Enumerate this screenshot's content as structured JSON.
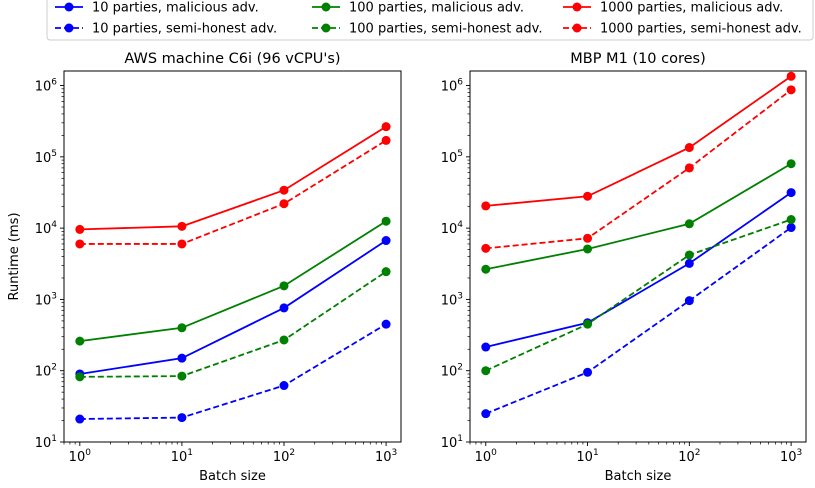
{
  "legend": {
    "placement": "top-center",
    "entries": [
      {
        "label": "10 parties, malicious adv.",
        "color": "#0000ff",
        "dash": "solid"
      },
      {
        "label": "100 parties, malicious adv.",
        "color": "#008000",
        "dash": "solid"
      },
      {
        "label": "1000 parties, malicious adv.",
        "color": "#ff0000",
        "dash": "solid"
      },
      {
        "label": "10 parties, semi-honest adv.",
        "color": "#0000ff",
        "dash": "dashed"
      },
      {
        "label": "100 parties, semi-honest adv.",
        "color": "#008000",
        "dash": "dashed"
      },
      {
        "label": "1000 parties, semi-honest adv.",
        "color": "#ff0000",
        "dash": "dashed"
      }
    ]
  },
  "chart_data": [
    {
      "type": "line",
      "title": "AWS machine C6i (96 vCPU's)",
      "xlabel": "Batch size",
      "ylabel": "Runtime (ms)",
      "xscale": "log",
      "yscale": "log",
      "x": [
        1,
        10,
        100,
        1000
      ],
      "xticks": [
        {
          "value": 1,
          "base": "10",
          "exp": "0"
        },
        {
          "value": 10,
          "base": "10",
          "exp": "1"
        },
        {
          "value": 100,
          "base": "10",
          "exp": "2"
        },
        {
          "value": 1000,
          "base": "10",
          "exp": "3"
        }
      ],
      "yticks": [
        {
          "value": 10,
          "base": "10",
          "exp": "1"
        },
        {
          "value": 100,
          "base": "10",
          "exp": "2"
        },
        {
          "value": 1000,
          "base": "10",
          "exp": "3"
        },
        {
          "value": 10000,
          "base": "10",
          "exp": "4"
        },
        {
          "value": 100000,
          "base": "10",
          "exp": "5"
        },
        {
          "value": 1000000,
          "base": "10",
          "exp": "6"
        }
      ],
      "xlim": [
        0.7,
        1400
      ],
      "ylim": [
        10,
        1600000
      ],
      "grid": false,
      "series": [
        {
          "name": "10 parties, malicious adv.",
          "color": "#0000ff",
          "dash": "solid",
          "values": [
            90,
            150,
            760,
            6700
          ]
        },
        {
          "name": "10 parties, semi-honest adv.",
          "color": "#0000ff",
          "dash": "dashed",
          "values": [
            21,
            22,
            62,
            450
          ]
        },
        {
          "name": "100 parties, malicious adv.",
          "color": "#008000",
          "dash": "solid",
          "values": [
            260,
            400,
            1550,
            12500
          ]
        },
        {
          "name": "100 parties, semi-honest adv.",
          "color": "#008000",
          "dash": "dashed",
          "values": [
            82,
            84,
            270,
            2450
          ]
        },
        {
          "name": "1000 parties, malicious adv.",
          "color": "#ff0000",
          "dash": "solid",
          "values": [
            9600,
            10600,
            34000,
            265000
          ]
        },
        {
          "name": "1000 parties, semi-honest adv.",
          "color": "#ff0000",
          "dash": "dashed",
          "values": [
            6000,
            6000,
            22000,
            170000
          ]
        }
      ]
    },
    {
      "type": "line",
      "title": "MBP M1 (10 cores)",
      "xlabel": "Batch size",
      "ylabel": "",
      "xscale": "log",
      "yscale": "log",
      "x": [
        1,
        10,
        100,
        1000
      ],
      "xticks": [
        {
          "value": 1,
          "base": "10",
          "exp": "0"
        },
        {
          "value": 10,
          "base": "10",
          "exp": "1"
        },
        {
          "value": 100,
          "base": "10",
          "exp": "2"
        },
        {
          "value": 1000,
          "base": "10",
          "exp": "3"
        }
      ],
      "yticks": [
        {
          "value": 10,
          "base": "10",
          "exp": "1"
        },
        {
          "value": 100,
          "base": "10",
          "exp": "2"
        },
        {
          "value": 1000,
          "base": "10",
          "exp": "3"
        },
        {
          "value": 10000,
          "base": "10",
          "exp": "4"
        },
        {
          "value": 100000,
          "base": "10",
          "exp": "5"
        },
        {
          "value": 1000000,
          "base": "10",
          "exp": "6"
        }
      ],
      "xlim": [
        0.7,
        1400
      ],
      "ylim": [
        10,
        1600000
      ],
      "grid": false,
      "series": [
        {
          "name": "10 parties, malicious adv.",
          "color": "#0000ff",
          "dash": "solid",
          "values": [
            215,
            470,
            3200,
            31500
          ]
        },
        {
          "name": "10 parties, semi-honest adv.",
          "color": "#0000ff",
          "dash": "dashed",
          "values": [
            25,
            95,
            960,
            10200
          ]
        },
        {
          "name": "100 parties, malicious adv.",
          "color": "#008000",
          "dash": "solid",
          "values": [
            2650,
            5100,
            11500,
            80000
          ]
        },
        {
          "name": "100 parties, semi-honest adv.",
          "color": "#008000",
          "dash": "dashed",
          "values": [
            100,
            450,
            4200,
            13200
          ]
        },
        {
          "name": "1000 parties, malicious adv.",
          "color": "#ff0000",
          "dash": "solid",
          "values": [
            20500,
            28000,
            135000,
            1350000
          ]
        },
        {
          "name": "1000 parties, semi-honest adv.",
          "color": "#ff0000",
          "dash": "dashed",
          "values": [
            5200,
            7200,
            70000,
            870000
          ]
        }
      ]
    }
  ]
}
